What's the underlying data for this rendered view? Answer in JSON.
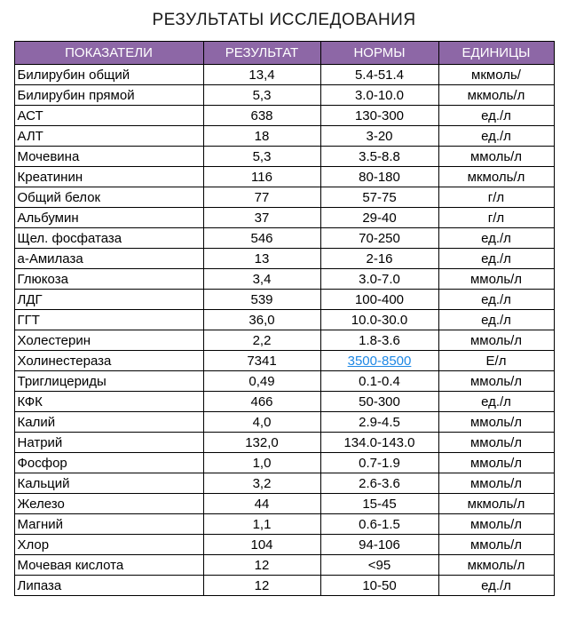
{
  "title": "РЕЗУЛЬТАТЫ ИССЛЕДОВАНИЯ",
  "table": {
    "headers": [
      "ПОКАЗАТЕЛИ",
      "РЕЗУЛЬТАТ",
      "НОРМЫ",
      "ЕДИНИЦЫ"
    ],
    "colors": {
      "header_bg": "#8D67A6",
      "header_text": "#FFFFFF",
      "link": "#1E88E5",
      "border": "#000000"
    },
    "rows": [
      {
        "indicator": "Билирубин общий",
        "result": "13,4",
        "norm": "5.4-51.4",
        "unit": "мкмоль/"
      },
      {
        "indicator": "Билирубин прямой",
        "result": "5,3",
        "norm": "3.0-10.0",
        "unit": "мкмоль/л"
      },
      {
        "indicator": "АСТ",
        "result": "638",
        "norm": "130-300",
        "unit": "ед./л"
      },
      {
        "indicator": "АЛТ",
        "result": "18",
        "norm": "3-20",
        "unit": "ед./л"
      },
      {
        "indicator": "Мочевина",
        "result": "5,3",
        "norm": "3.5-8.8",
        "unit": "ммоль/л"
      },
      {
        "indicator": "Креатинин",
        "result": "116",
        "norm": "80-180",
        "unit": "мкмоль/л"
      },
      {
        "indicator": "Общий белок",
        "result": "77",
        "norm": "57-75",
        "unit": "г/л"
      },
      {
        "indicator": "Альбумин",
        "result": "37",
        "norm": "29-40",
        "unit": "г/л"
      },
      {
        "indicator": "Щел. фосфатаза",
        "result": "546",
        "norm": "70-250",
        "unit": "ед./л"
      },
      {
        "indicator": "а-Амилаза",
        "result": "13",
        "norm": "2-16",
        "unit": "ед./л"
      },
      {
        "indicator": "Глюкоза",
        "result": "3,4",
        "norm": "3.0-7.0",
        "unit": "ммоль/л"
      },
      {
        "indicator": "ЛДГ",
        "result": "539",
        "norm": "100-400",
        "unit": "ед./л"
      },
      {
        "indicator": "ГГТ",
        "result": "36,0",
        "norm": "10.0-30.0",
        "unit": "ед./л"
      },
      {
        "indicator": "Холестерин",
        "result": "2,2",
        "norm": "1.8-3.6",
        "unit": "ммоль/л"
      },
      {
        "indicator": "Холинестераза",
        "result": "7341",
        "norm": "3500-8500",
        "unit": "Е/л",
        "norm_link": true
      },
      {
        "indicator": "Триглицериды",
        "result": "0,49",
        "norm": "0.1-0.4",
        "unit": "ммоль/л"
      },
      {
        "indicator": "КФК",
        "result": "466",
        "norm": "50-300",
        "unit": "ед./л"
      },
      {
        "indicator": "Калий",
        "result": "4,0",
        "norm": "2.9-4.5",
        "unit": "ммоль/л"
      },
      {
        "indicator": "Натрий",
        "result": "132,0",
        "norm": "134.0-143.0",
        "unit": "ммоль/л"
      },
      {
        "indicator": "Фосфор",
        "result": "1,0",
        "norm": "0.7-1.9",
        "unit": "ммоль/л"
      },
      {
        "indicator": "Кальций",
        "result": "3,2",
        "norm": "2.6-3.6",
        "unit": "ммоль/л"
      },
      {
        "indicator": "Железо",
        "result": "44",
        "norm": "15-45",
        "unit": "мкмоль/л"
      },
      {
        "indicator": "Магний",
        "result": "1,1",
        "norm": "0.6-1.5",
        "unit": "ммоль/л"
      },
      {
        "indicator": "Хлор",
        "result": "104",
        "norm": "94-106",
        "unit": "ммоль/л"
      },
      {
        "indicator": "Мочевая кислота",
        "result": "12",
        "norm": "&lt;95",
        "unit": "мкмоль/л"
      },
      {
        "indicator": "Липаза",
        "result": "12",
        "norm": "10-50",
        "unit": "ед./л"
      }
    ]
  }
}
